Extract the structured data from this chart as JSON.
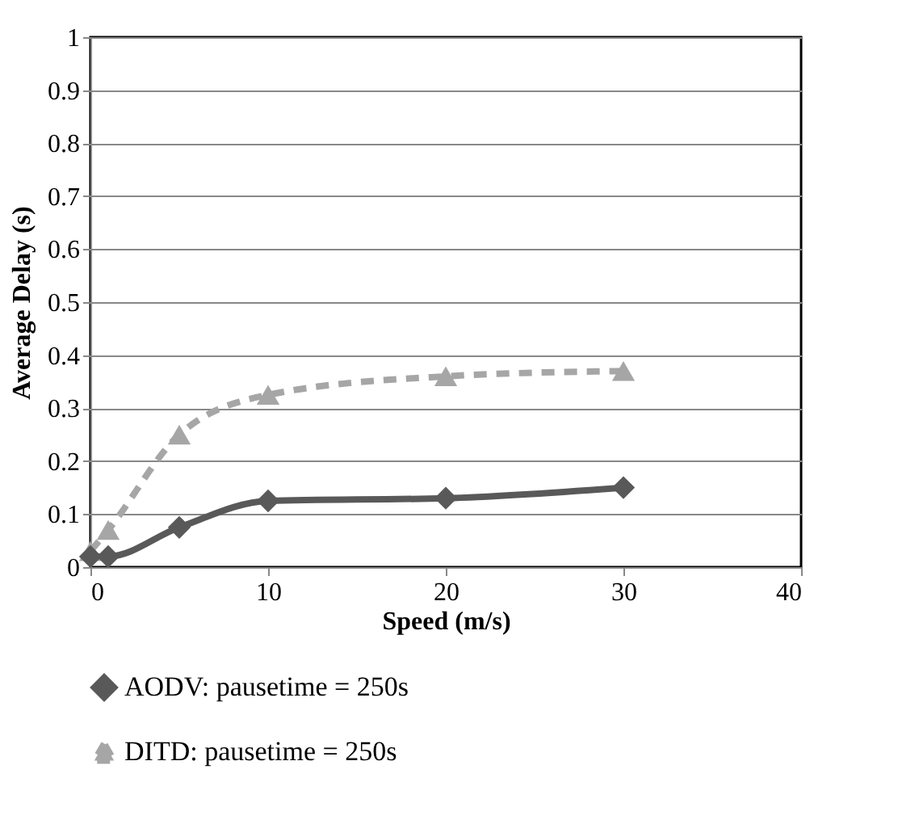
{
  "chart_data": {
    "type": "line",
    "xlabel": "Speed (m/s)",
    "ylabel": "Average Delay (s)",
    "x": [
      0,
      1,
      5,
      10,
      20,
      30
    ],
    "series": [
      {
        "name": "AODV: pausetime = 250s",
        "color": "#595959",
        "values": [
          0.02,
          0.02,
          0.075,
          0.125,
          0.13,
          0.15
        ],
        "marker": "diamond",
        "line_style": "solid"
      },
      {
        "name": "DITD: pausetime = 250s",
        "color": "#a6a6a6",
        "values": [
          0.03,
          0.07,
          0.25,
          0.325,
          0.36,
          0.37
        ],
        "marker": "triangle",
        "line_style": "dashed"
      }
    ],
    "xlim": [
      0,
      40
    ],
    "xticks": [
      0,
      10,
      20,
      30,
      40
    ],
    "ylim": [
      0,
      1
    ],
    "yticks": [
      0,
      0.1,
      0.2,
      0.3,
      0.4,
      0.5,
      0.6,
      0.7,
      0.8,
      0.9,
      1
    ],
    "grid": "y",
    "legend": "bottom"
  }
}
